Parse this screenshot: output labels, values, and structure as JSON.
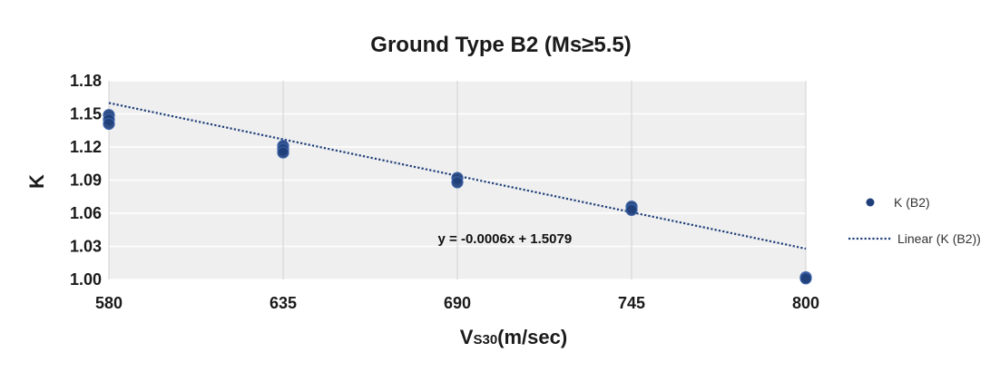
{
  "chart_data": {
    "type": "scatter",
    "title": "Ground Type B2 (Ms≥5.5)",
    "xlabel_main": "V",
    "xlabel_sub": "S30",
    "xlabel_rest": "(m/sec)",
    "ylabel": "K",
    "xlim": [
      580,
      800
    ],
    "ylim": [
      1.0,
      1.18
    ],
    "x_ticks": [
      580,
      635,
      690,
      745,
      800
    ],
    "x_tick_labels": [
      "580",
      "635",
      "690",
      "745",
      "800"
    ],
    "y_ticks": [
      1.0,
      1.03,
      1.06,
      1.09,
      1.12,
      1.15,
      1.18
    ],
    "y_tick_labels": [
      "1.00",
      "1.03",
      "1.06",
      "1.09",
      "1.12",
      "1.15",
      "1.18"
    ],
    "grid": true,
    "legend_position": "right",
    "series": [
      {
        "name": "K (B2)",
        "kind": "scatter",
        "color": "#1f3f7a",
        "points": [
          {
            "x": 580,
            "y": 1.149
          },
          {
            "x": 580,
            "y": 1.145
          },
          {
            "x": 580,
            "y": 1.141
          },
          {
            "x": 635,
            "y": 1.121
          },
          {
            "x": 635,
            "y": 1.118
          },
          {
            "x": 635,
            "y": 1.115
          },
          {
            "x": 690,
            "y": 1.092
          },
          {
            "x": 690,
            "y": 1.088
          },
          {
            "x": 745,
            "y": 1.066
          },
          {
            "x": 745,
            "y": 1.063
          },
          {
            "x": 800,
            "y": 1.002
          },
          {
            "x": 800,
            "y": 1.001
          }
        ]
      },
      {
        "name": "Linear (K (B2))",
        "kind": "trendline",
        "color": "#1f3f7a",
        "slope": -0.0006,
        "intercept": 1.5079
      }
    ],
    "annotations": [
      {
        "text": "y = -0.0006x + 1.5079",
        "x": 705,
        "y": 1.033
      }
    ]
  },
  "colors": {
    "plot_background": "#efefef",
    "marker": "#1f3f7a",
    "trendline": "#1f3f7a"
  }
}
